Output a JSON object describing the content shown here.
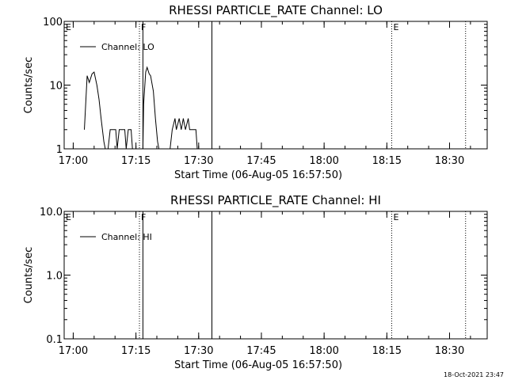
{
  "timestamp": "18-Oct-2021 23:47",
  "chart_data": [
    {
      "type": "line",
      "title": "RHESSI PARTICLE_RATE Channel: LO",
      "xlabel": "Start Time (06-Aug-05 16:57:50)",
      "ylabel": "Counts/sec",
      "yscale": "log",
      "ylim": [
        1,
        100
      ],
      "yticks": [
        1,
        10,
        100
      ],
      "ytick_labels": [
        "1",
        "10",
        "100"
      ],
      "xlim": [
        "16:57:50",
        "18:39:00"
      ],
      "xticks": [
        "17:00",
        "17:15",
        "17:30",
        "17:45",
        "18:00",
        "18:15",
        "18:30"
      ],
      "legend": {
        "label": "Channel: LO",
        "placement": "top-left"
      },
      "markers": [
        {
          "time": "16:57:50",
          "label": "E",
          "style": "dotted"
        },
        {
          "time": "17:15:50",
          "label": "F",
          "style": "dotted"
        },
        {
          "time": "17:16:40",
          "label": "",
          "style": "solid"
        },
        {
          "time": "17:33:10",
          "label": "",
          "style": "solid"
        },
        {
          "time": "18:16:10",
          "label": "E",
          "style": "dotted"
        },
        {
          "time": "18:33:50",
          "label": "",
          "style": "dotted"
        }
      ],
      "series": [
        {
          "segments": [
            [
              [
                "17:02:40",
                2
              ],
              [
                "17:03:20",
                14
              ],
              [
                "17:03:50",
                11
              ],
              [
                "17:04:30",
                15
              ],
              [
                "17:05:00",
                16
              ],
              [
                "17:05:40",
                10
              ],
              [
                "17:06:10",
                6
              ],
              [
                "17:06:40",
                3
              ],
              [
                "17:07:20",
                1.3
              ],
              [
                "17:07:40",
                1
              ]
            ],
            [
              [
                "17:08:20",
                1
              ],
              [
                "17:08:50",
                2
              ],
              [
                "17:10:10",
                2
              ],
              [
                "17:10:30",
                1
              ],
              [
                "17:11:00",
                2
              ],
              [
                "17:12:20",
                2
              ],
              [
                "17:12:40",
                1
              ],
              [
                "17:13:10",
                2
              ],
              [
                "17:13:50",
                2
              ],
              [
                "17:14:10",
                1
              ]
            ],
            [
              [
                "17:16:40",
                1
              ],
              [
                "17:16:50",
                5
              ],
              [
                "17:17:20",
                16
              ],
              [
                "17:17:40",
                19
              ],
              [
                "17:18:10",
                15
              ],
              [
                "17:18:30",
                14
              ],
              [
                "17:19:10",
                8
              ],
              [
                "17:19:40",
                3
              ],
              [
                "17:20:10",
                1.3
              ],
              [
                "17:20:30",
                1
              ]
            ],
            [
              [
                "17:23:10",
                1
              ],
              [
                "17:23:40",
                2
              ],
              [
                "17:24:20",
                3
              ],
              [
                "17:24:40",
                2
              ],
              [
                "17:25:20",
                3
              ],
              [
                "17:25:50",
                2
              ],
              [
                "17:26:20",
                3
              ],
              [
                "17:26:50",
                2
              ],
              [
                "17:27:30",
                3
              ],
              [
                "17:27:50",
                2
              ],
              [
                "17:29:20",
                2
              ],
              [
                "17:29:40",
                1
              ]
            ]
          ]
        }
      ]
    },
    {
      "type": "line",
      "title": "RHESSI PARTICLE_RATE Channel: HI",
      "xlabel": "Start Time (06-Aug-05 16:57:50)",
      "ylabel": "Counts/sec",
      "yscale": "log",
      "ylim": [
        0.1,
        10
      ],
      "yticks": [
        0.1,
        1,
        10
      ],
      "ytick_labels": [
        "0.1",
        "1.0",
        "10.0"
      ],
      "xlim": [
        "16:57:50",
        "18:39:00"
      ],
      "xticks": [
        "17:00",
        "17:15",
        "17:30",
        "17:45",
        "18:00",
        "18:15",
        "18:30"
      ],
      "legend": {
        "label": "Channel: HI",
        "placement": "top-left"
      },
      "markers": [
        {
          "time": "16:57:50",
          "label": "E",
          "style": "dotted"
        },
        {
          "time": "17:15:50",
          "label": "F",
          "style": "dotted"
        },
        {
          "time": "17:16:40",
          "label": "",
          "style": "solid"
        },
        {
          "time": "17:33:10",
          "label": "",
          "style": "solid"
        },
        {
          "time": "18:16:10",
          "label": "E",
          "style": "dotted"
        },
        {
          "time": "18:33:50",
          "label": "",
          "style": "dotted"
        }
      ],
      "series": [
        {
          "segments": []
        }
      ]
    }
  ]
}
